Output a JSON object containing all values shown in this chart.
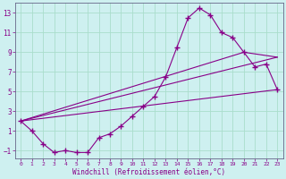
{
  "xlabel": "Windchill (Refroidissement éolien,°C)",
  "bg_color": "#cef0f0",
  "line_color": "#880088",
  "grid_color": "#aaddcc",
  "xlim": [
    -0.5,
    23.5
  ],
  "ylim": [
    -1.8,
    14.0
  ],
  "xticks": [
    0,
    1,
    2,
    3,
    4,
    5,
    6,
    7,
    8,
    9,
    10,
    11,
    12,
    13,
    14,
    15,
    16,
    17,
    18,
    19,
    20,
    21,
    22,
    23
  ],
  "yticks": [
    -1,
    1,
    3,
    5,
    7,
    9,
    11,
    13
  ],
  "main_x": [
    0,
    1,
    2,
    3,
    4,
    5,
    6,
    7,
    8,
    9,
    10,
    11,
    12,
    13,
    14,
    15,
    16,
    17,
    18,
    19,
    20,
    21,
    22,
    23
  ],
  "main_y": [
    2,
    1,
    -0.3,
    -1.2,
    -1,
    -1.2,
    -1.2,
    0.3,
    0.7,
    1.5,
    2.5,
    3.5,
    4.5,
    6.5,
    9.5,
    12.5,
    13.5,
    12.8,
    11.0,
    10.5,
    9.0,
    7.5,
    7.8,
    5.2
  ],
  "line1_x": [
    0,
    23
  ],
  "line1_y": [
    2,
    5.2
  ],
  "line2_x": [
    0,
    23
  ],
  "line2_y": [
    2,
    8.5
  ],
  "line3_x": [
    0,
    20,
    23
  ],
  "line3_y": [
    2,
    9.0,
    8.5
  ]
}
